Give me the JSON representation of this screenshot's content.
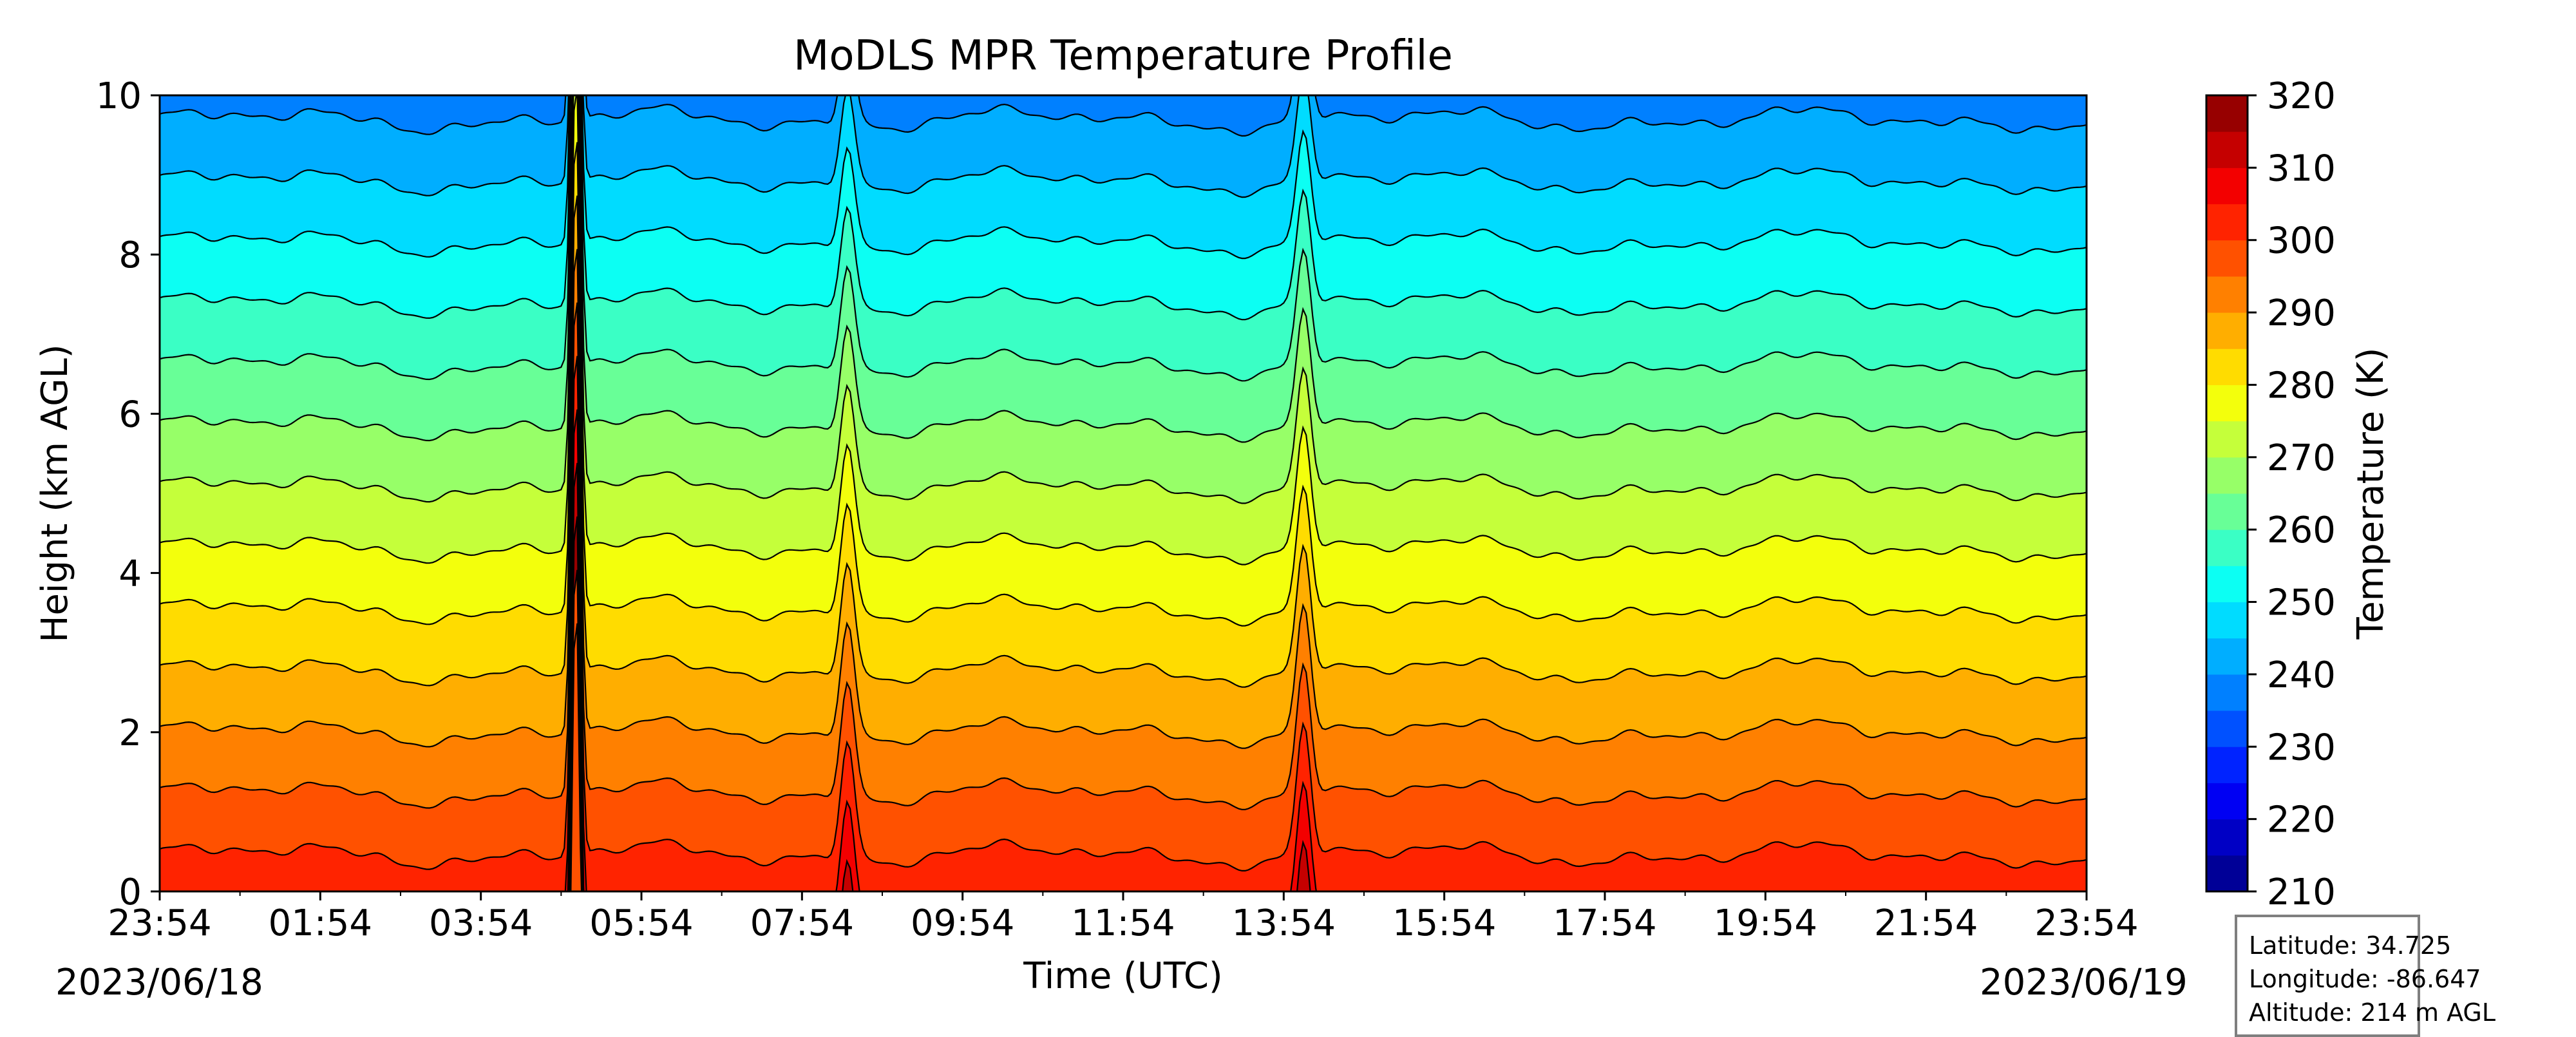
{
  "chart_data": {
    "type": "heatmap",
    "title": "MoDLS MPR Temperature Profile",
    "xlabel": "Time (UTC)",
    "ylabel": "Height (km AGL)",
    "x_tick_labels": [
      "23:54",
      "01:54",
      "03:54",
      "05:54",
      "07:54",
      "09:54",
      "11:54",
      "13:54",
      "15:54",
      "17:54",
      "19:54",
      "21:54",
      "23:54"
    ],
    "start_date": "2023/06/18",
    "end_date": "2023/06/19",
    "x_range_hours": [
      0,
      24
    ],
    "y_ticks": [
      0,
      2,
      4,
      6,
      8,
      10
    ],
    "ylim": [
      0,
      10
    ],
    "colorbar": {
      "label": "Temperature (K)",
      "ticks": [
        210,
        220,
        230,
        240,
        250,
        260,
        270,
        280,
        290,
        300,
        310,
        320
      ],
      "range": [
        210,
        320
      ],
      "step": 5,
      "colormap": "jet"
    },
    "contour_interval_K": 5,
    "surface_temperature_K": 298,
    "lapse_rate_K_per_km": 6.5,
    "temperature_at_10km_K": 233,
    "spikes": [
      {
        "time": "05:05",
        "amplitude_K": 50
      },
      {
        "time": "08:28",
        "amplitude_K": 10
      },
      {
        "time": "14:09",
        "amplitude_K": 11
      }
    ]
  },
  "info": {
    "latitude": "Latitude: 34.725",
    "longitude": "Longitude: -86.647",
    "altitude": "Altitude: 214 m AGL"
  }
}
